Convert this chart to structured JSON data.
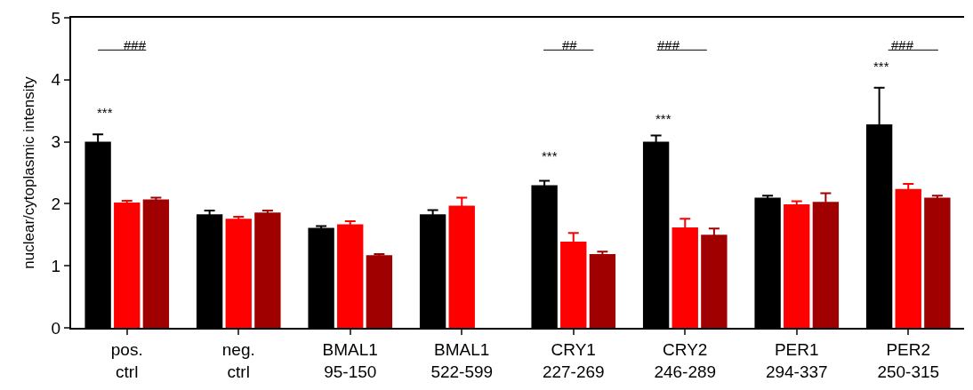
{
  "chart_data": {
    "type": "bar",
    "ylabel": "nuclear/cytoplasmic intensity",
    "categories": [
      "pos.\nctrl",
      "neg.\nctrl",
      "BMAL1\n95-150",
      "BMAL1\n522-599",
      "CRY1\n227-269",
      "CRY2\n246-289",
      "PER1\n294-337",
      "PER2\n250-315"
    ],
    "series": [
      {
        "color": "#000000",
        "values": [
          3.0,
          1.83,
          1.61,
          1.83,
          2.3,
          3.0,
          2.1,
          3.28
        ],
        "errors": [
          0.12,
          0.06,
          0.03,
          0.07,
          0.07,
          0.1,
          0.03,
          0.59
        ]
      },
      {
        "color": "#ff0000",
        "values": [
          2.02,
          1.76,
          1.67,
          1.97,
          1.39,
          1.62,
          1.99,
          2.24
        ],
        "errors": [
          0.03,
          0.03,
          0.05,
          0.13,
          0.14,
          0.14,
          0.05,
          0.08
        ]
      },
      {
        "color": "#a00000",
        "values": [
          2.07,
          1.86,
          1.17,
          null,
          1.19,
          1.5,
          2.03,
          2.1
        ],
        "errors": [
          0.03,
          0.03,
          0.02,
          null,
          0.04,
          0.1,
          0.14,
          0.03
        ]
      }
    ],
    "ylim": [
      0,
      5
    ],
    "yticks": [
      0,
      1,
      2,
      3,
      4,
      5
    ],
    "annotations": [
      "***",
      "***",
      "***",
      "***",
      "###",
      "##",
      "###",
      "###"
    ]
  }
}
